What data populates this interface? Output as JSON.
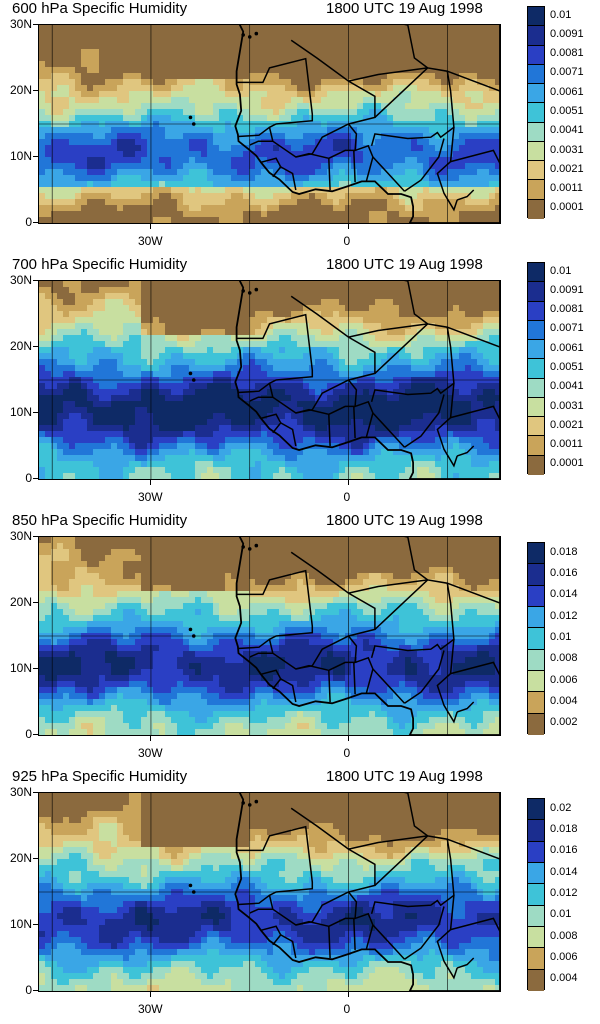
{
  "panels": [
    {
      "title": "600 hPa Specific Humidity",
      "time": "1800 UTC 19 Aug 1998",
      "colorbar_labels": [
        "0.01",
        "0.0091",
        "0.0081",
        "0.0071",
        "0.0061",
        "0.0051",
        "0.0041",
        "0.0031",
        "0.0021",
        "0.0011",
        "0.0001"
      ],
      "moisture_level": 0.35
    },
    {
      "title": "700 hPa Specific Humidity",
      "time": "1800 UTC 19 Aug 1998",
      "colorbar_labels": [
        "0.01",
        "0.0091",
        "0.0081",
        "0.0071",
        "0.0061",
        "0.0051",
        "0.0041",
        "0.0031",
        "0.0021",
        "0.0011",
        "0.0001"
      ],
      "moisture_level": 0.75
    },
    {
      "title": "850 hPa Specific Humidity",
      "time": "1800 UTC 19 Aug 1998",
      "colorbar_labels": [
        "0.018",
        "0.016",
        "0.014",
        "0.012",
        "0.01",
        "0.008",
        "0.006",
        "0.004",
        "0.002"
      ],
      "moisture_level": 0.6
    },
    {
      "title": "925 hPa Specific Humidity",
      "time": "1800 UTC 19 Aug 1998",
      "colorbar_labels": [
        "0.02",
        "0.018",
        "0.016",
        "0.014",
        "0.012",
        "0.01",
        "0.008",
        "0.006",
        "0.004"
      ],
      "moisture_level": 0.55
    }
  ],
  "y_labels": [
    "30N",
    "20N",
    "10N",
    "0"
  ],
  "x_labels": [
    "30W",
    "0"
  ],
  "colors": {
    "dry_dark": "#8b6a3e",
    "dry": "#c9a45a",
    "tan": "#e0c67f",
    "pale_green": "#c8dfa0",
    "mint": "#9edbc4",
    "cyan": "#3ec3d8",
    "light_blue": "#3aa6e6",
    "blue": "#2176d8",
    "deep_blue": "#2a3fc4",
    "navy": "#1b2d8f",
    "darkest": "#0e2a66"
  }
}
